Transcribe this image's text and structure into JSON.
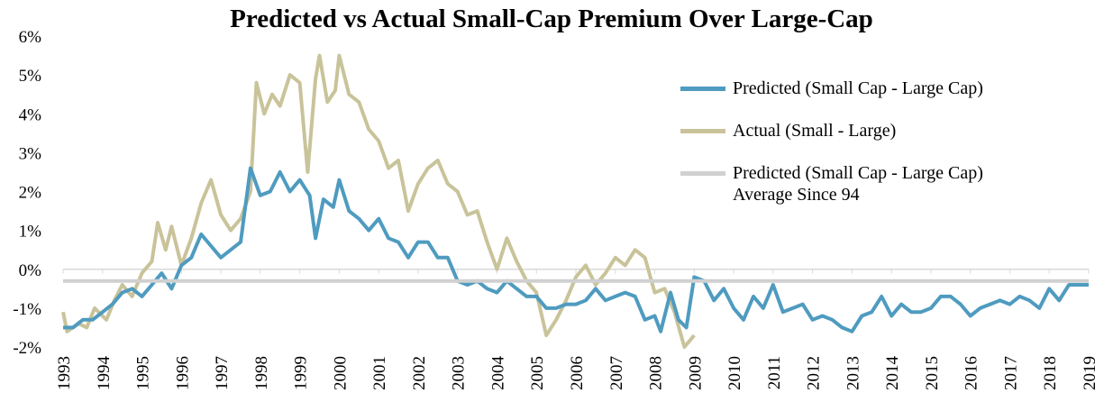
{
  "chart_data": {
    "type": "line",
    "title": "Predicted vs Actual Small-Cap Premium Over Large-Cap",
    "xlim": [
      1993,
      2019
    ],
    "xticks": [
      1993,
      1994,
      1995,
      1996,
      1997,
      1998,
      1999,
      2000,
      2001,
      2002,
      2003,
      2004,
      2005,
      2006,
      2007,
      2008,
      2009,
      2010,
      2011,
      2012,
      2013,
      2014,
      2015,
      2016,
      2017,
      2018,
      2019
    ],
    "ylim": [
      -2,
      6
    ],
    "yticks": [
      {
        "value": -2,
        "label": "-2%"
      },
      {
        "value": -1,
        "label": "-1%"
      },
      {
        "value": 0,
        "label": "0%"
      },
      {
        "value": 1,
        "label": "1%"
      },
      {
        "value": 2,
        "label": "2%"
      },
      {
        "value": 3,
        "label": "3%"
      },
      {
        "value": 4,
        "label": "4%"
      },
      {
        "value": 5,
        "label": "5%"
      },
      {
        "value": 6,
        "label": "6%"
      }
    ],
    "grid": false,
    "legend": "right",
    "series": [
      {
        "name": "Predicted (Small Cap - Large Cap)",
        "color": "#4f9bc0",
        "x": [
          1993.0,
          1993.25,
          1993.5,
          1993.75,
          1994.0,
          1994.25,
          1994.5,
          1994.75,
          1995.0,
          1995.25,
          1995.5,
          1995.75,
          1996.0,
          1996.25,
          1996.5,
          1996.75,
          1997.0,
          1997.25,
          1997.5,
          1997.75,
          1998.0,
          1998.25,
          1998.5,
          1998.75,
          1999.0,
          1999.25,
          1999.4,
          1999.6,
          1999.85,
          2000.0,
          2000.25,
          2000.5,
          2000.75,
          2001.0,
          2001.25,
          2001.5,
          2001.75,
          2002.0,
          2002.25,
          2002.5,
          2002.75,
          2003.0,
          2003.25,
          2003.5,
          2003.75,
          2004.0,
          2004.25,
          2004.5,
          2004.75,
          2005.0,
          2005.25,
          2005.5,
          2005.75,
          2006.0,
          2006.25,
          2006.5,
          2006.75,
          2007.0,
          2007.25,
          2007.5,
          2007.75,
          2008.0,
          2008.15,
          2008.4,
          2008.6,
          2008.8,
          2009.0,
          2009.25,
          2009.5,
          2009.75,
          2010.0,
          2010.25,
          2010.5,
          2010.75,
          2011.0,
          2011.25,
          2011.5,
          2011.75,
          2012.0,
          2012.25,
          2012.5,
          2012.75,
          2013.0,
          2013.25,
          2013.5,
          2013.75,
          2014.0,
          2014.25,
          2014.5,
          2014.75,
          2015.0,
          2015.25,
          2015.5,
          2015.75,
          2016.0,
          2016.25,
          2016.5,
          2016.75,
          2017.0,
          2017.25,
          2017.5,
          2017.75,
          2018.0,
          2018.25,
          2018.5,
          2018.75,
          2019.0
        ],
        "values": [
          -1.5,
          -1.5,
          -1.3,
          -1.3,
          -1.1,
          -0.9,
          -0.6,
          -0.5,
          -0.7,
          -0.4,
          -0.1,
          -0.5,
          0.1,
          0.3,
          0.9,
          0.6,
          0.3,
          0.5,
          0.7,
          2.6,
          1.9,
          2.0,
          2.5,
          2.0,
          2.3,
          1.9,
          0.8,
          1.8,
          1.6,
          2.3,
          1.5,
          1.3,
          1.0,
          1.3,
          0.8,
          0.7,
          0.3,
          0.7,
          0.7,
          0.3,
          0.3,
          -0.3,
          -0.4,
          -0.3,
          -0.5,
          -0.6,
          -0.3,
          -0.5,
          -0.7,
          -0.7,
          -1.0,
          -1.0,
          -0.9,
          -0.9,
          -0.8,
          -0.5,
          -0.8,
          -0.7,
          -0.6,
          -0.7,
          -1.3,
          -1.2,
          -1.6,
          -0.6,
          -1.3,
          -1.5,
          -0.2,
          -0.3,
          -0.8,
          -0.5,
          -1.0,
          -1.3,
          -0.7,
          -1.0,
          -0.4,
          -1.1,
          -1.0,
          -0.9,
          -1.3,
          -1.2,
          -1.3,
          -1.5,
          -1.6,
          -1.2,
          -1.1,
          -0.7,
          -1.2,
          -0.9,
          -1.1,
          -1.1,
          -1.0,
          -0.7,
          -0.7,
          -0.9,
          -1.2,
          -1.0,
          -0.9,
          -0.8,
          -0.9,
          -0.7,
          -0.8,
          -1.0,
          -0.5,
          -0.8,
          -0.4,
          -0.4,
          -0.4
        ]
      },
      {
        "name": "Actual (Small - Large)",
        "color": "#c9c39a",
        "x": [
          1993.0,
          1993.1,
          1993.4,
          1993.6,
          1993.8,
          1994.1,
          1994.3,
          1994.5,
          1994.75,
          1995.0,
          1995.25,
          1995.4,
          1995.6,
          1995.75,
          1996.0,
          1996.25,
          1996.5,
          1996.75,
          1997.0,
          1997.25,
          1997.5,
          1997.75,
          1997.9,
          1998.1,
          1998.3,
          1998.5,
          1998.75,
          1999.0,
          1999.2,
          1999.4,
          1999.5,
          1999.7,
          1999.9,
          2000.0,
          2000.25,
          2000.5,
          2000.75,
          2001.0,
          2001.25,
          2001.5,
          2001.75,
          2002.0,
          2002.25,
          2002.5,
          2002.75,
          2003.0,
          2003.25,
          2003.5,
          2003.75,
          2004.0,
          2004.25,
          2004.5,
          2004.75,
          2005.0,
          2005.25,
          2005.5,
          2005.75,
          2006.0,
          2006.25,
          2006.5,
          2006.75,
          2007.0,
          2007.25,
          2007.5,
          2007.75,
          2008.0,
          2008.25,
          2008.5,
          2008.75,
          2009.0
        ],
        "values": [
          -1.1,
          -1.6,
          -1.4,
          -1.5,
          -1.0,
          -1.3,
          -0.8,
          -0.4,
          -0.7,
          -0.1,
          0.2,
          1.2,
          0.5,
          1.1,
          0.1,
          0.8,
          1.7,
          2.3,
          1.4,
          1.0,
          1.3,
          2.0,
          4.8,
          4.0,
          4.5,
          4.2,
          5.0,
          4.8,
          2.5,
          4.9,
          5.5,
          4.3,
          4.6,
          5.5,
          4.5,
          4.3,
          3.6,
          3.3,
          2.6,
          2.8,
          1.5,
          2.2,
          2.6,
          2.8,
          2.2,
          2.0,
          1.4,
          1.5,
          0.7,
          0.0,
          0.8,
          0.2,
          -0.3,
          -0.6,
          -1.7,
          -1.3,
          -0.8,
          -0.2,
          0.1,
          -0.4,
          -0.1,
          0.3,
          0.1,
          0.5,
          0.3,
          -0.6,
          -0.5,
          -1.1,
          -2.0,
          -1.7
        ]
      },
      {
        "name": "Predicted (Small Cap - Large Cap) Average Since 94",
        "color": "#d0d0d0",
        "x": [
          1993,
          2019
        ],
        "values": [
          -0.3,
          -0.3
        ]
      }
    ]
  }
}
